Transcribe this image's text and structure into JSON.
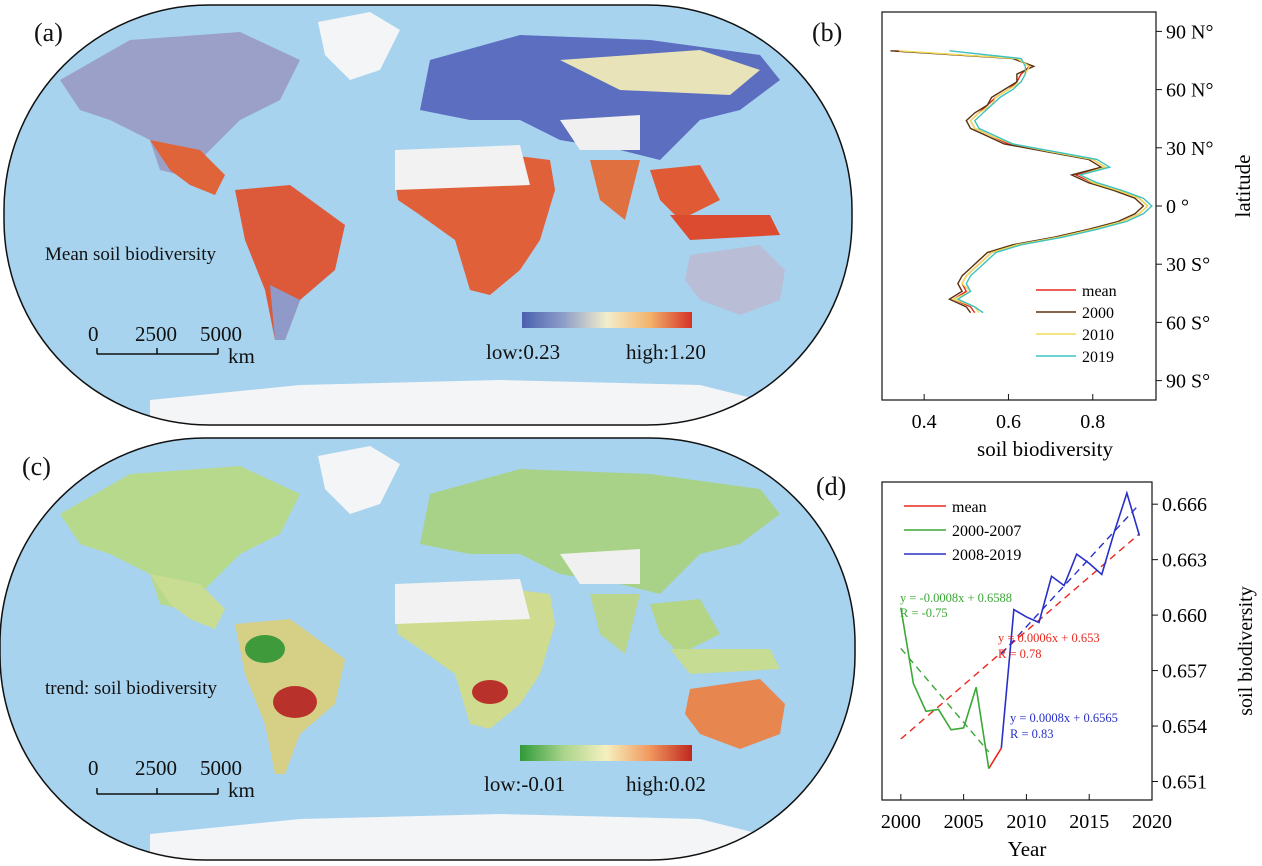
{
  "panels": {
    "a": {
      "label": "(a)",
      "map_title": "Mean soil biodiversity",
      "scale": {
        "ticks": [
          "0",
          "2500",
          "5000"
        ],
        "unit": "km"
      },
      "colorbar": {
        "low_label": "low:0.23",
        "high_label": "high:1.20",
        "colors": [
          "#4a5fb0",
          "#8fa0c8",
          "#f3eecb",
          "#f2b46c",
          "#d73027"
        ]
      }
    },
    "b": {
      "label": "(b)"
    },
    "c": {
      "label": "(c)",
      "map_title": "trend: soil biodiversity",
      "scale": {
        "ticks": [
          "0",
          "2500",
          "5000"
        ],
        "unit": "km"
      },
      "colorbar": {
        "low_label": "low:-0.01",
        "high_label": "high:0.02",
        "colors": [
          "#2f9a3a",
          "#a8d38a",
          "#f6f0bf",
          "#f19a5f",
          "#c0261f"
        ]
      }
    },
    "d": {
      "label": "(d)"
    }
  },
  "map_colors": {
    "ocean": "#a7d3ef",
    "ice": "#f4f5f6"
  },
  "chart_data": [
    {
      "type": "line",
      "panel": "b",
      "xlabel": "soil biodiversity",
      "ylabel": "latitude",
      "xlim": [
        0.3,
        0.95
      ],
      "ylim": [
        -100,
        100
      ],
      "x_ticks": [
        "0.4",
        "0.6",
        "0.8"
      ],
      "x_tick_values": [
        0.4,
        0.6,
        0.8
      ],
      "y_ticks": [
        "90 N°",
        "60 N°",
        "30 N°",
        "0 °",
        "30 S°",
        "60 S°",
        "90 S°"
      ],
      "y_tick_values": [
        90,
        60,
        30,
        0,
        -30,
        -60,
        -90
      ],
      "legend_position": "bottom-right",
      "series": [
        {
          "name": "mean",
          "color": "#e8281e",
          "lat": [
            80,
            76,
            72,
            68,
            64,
            60,
            56,
            52,
            48,
            44,
            40,
            36,
            32,
            28,
            24,
            20,
            16,
            12,
            8,
            4,
            0,
            -4,
            -8,
            -12,
            -16,
            -20,
            -24,
            -28,
            -32,
            -36,
            -40,
            -44,
            -48,
            -52,
            -55
          ],
          "x": [
            0.33,
            0.62,
            0.65,
            0.63,
            0.62,
            0.6,
            0.57,
            0.55,
            0.53,
            0.51,
            0.52,
            0.56,
            0.6,
            0.7,
            0.8,
            0.83,
            0.76,
            0.8,
            0.86,
            0.91,
            0.93,
            0.91,
            0.87,
            0.8,
            0.72,
            0.62,
            0.56,
            0.54,
            0.52,
            0.5,
            0.49,
            0.5,
            0.47,
            0.51,
            0.52
          ]
        },
        {
          "name": "2000",
          "color": "#5a3210",
          "lat": [
            80,
            76,
            72,
            68,
            64,
            60,
            56,
            52,
            48,
            44,
            40,
            36,
            32,
            28,
            24,
            20,
            16,
            12,
            8,
            4,
            0,
            -4,
            -8,
            -12,
            -16,
            -20,
            -24,
            -28,
            -32,
            -36,
            -40,
            -44,
            -48,
            -52,
            -55
          ],
          "x": [
            0.32,
            0.61,
            0.66,
            0.62,
            0.62,
            0.59,
            0.56,
            0.55,
            0.52,
            0.5,
            0.51,
            0.55,
            0.59,
            0.69,
            0.79,
            0.82,
            0.75,
            0.79,
            0.85,
            0.9,
            0.92,
            0.9,
            0.86,
            0.79,
            0.71,
            0.61,
            0.55,
            0.53,
            0.51,
            0.49,
            0.48,
            0.49,
            0.46,
            0.5,
            0.51
          ]
        },
        {
          "name": "2010",
          "color": "#f0dc5a",
          "lat": [
            80,
            76,
            72,
            68,
            64,
            60,
            56,
            52,
            48,
            44,
            40,
            36,
            32,
            28,
            24,
            20,
            16,
            12,
            8,
            4,
            0,
            -4,
            -8,
            -12,
            -16,
            -20,
            -24,
            -28,
            -32,
            -36,
            -40,
            -44,
            -48,
            -52,
            -55
          ],
          "x": [
            0.34,
            0.62,
            0.65,
            0.64,
            0.63,
            0.6,
            0.57,
            0.56,
            0.53,
            0.51,
            0.52,
            0.56,
            0.61,
            0.7,
            0.8,
            0.83,
            0.77,
            0.8,
            0.86,
            0.91,
            0.93,
            0.91,
            0.87,
            0.8,
            0.72,
            0.62,
            0.56,
            0.54,
            0.52,
            0.5,
            0.49,
            0.51,
            0.47,
            0.52,
            0.53
          ]
        },
        {
          "name": "2019",
          "color": "#3cc2c0",
          "lat": [
            80,
            76,
            72,
            68,
            64,
            60,
            56,
            52,
            48,
            44,
            40,
            36,
            32,
            28,
            24,
            20,
            16,
            12,
            8,
            4,
            0,
            -4,
            -8,
            -12,
            -16,
            -20,
            -24,
            -28,
            -32,
            -36,
            -40,
            -44,
            -48,
            -52,
            -55
          ],
          "x": [
            0.46,
            0.63,
            0.64,
            0.64,
            0.63,
            0.61,
            0.58,
            0.56,
            0.54,
            0.52,
            0.53,
            0.57,
            0.61,
            0.71,
            0.81,
            0.84,
            0.77,
            0.81,
            0.87,
            0.92,
            0.94,
            0.92,
            0.88,
            0.81,
            0.73,
            0.63,
            0.57,
            0.55,
            0.53,
            0.51,
            0.5,
            0.51,
            0.48,
            0.52,
            0.54
          ]
        }
      ]
    },
    {
      "type": "line",
      "panel": "d",
      "xlabel": "Year",
      "ylabel": "soil biodiversity",
      "xlim": [
        1998.5,
        2020
      ],
      "ylim": [
        0.65,
        0.6672
      ],
      "x_ticks": [
        "2000",
        "2005",
        "2010",
        "2015",
        "2020"
      ],
      "x_tick_values": [
        2000,
        2005,
        2010,
        2015,
        2020
      ],
      "y_ticks": [
        "0.666",
        "0.663",
        "0.660",
        "0.657",
        "0.654",
        "0.651"
      ],
      "y_tick_values": [
        0.666,
        0.663,
        0.66,
        0.657,
        0.654,
        0.651
      ],
      "legend_position": "top-left",
      "series": [
        {
          "name": "mean",
          "color": "#e8281e",
          "x": [
            2007,
            2008
          ],
          "y": [
            0.6517,
            0.6528
          ]
        },
        {
          "name": "2000-2007",
          "color": "#3aa835",
          "x": [
            2000,
            2001,
            2002,
            2003,
            2004,
            2005,
            2006,
            2007
          ],
          "y": [
            0.6604,
            0.6563,
            0.6548,
            0.6549,
            0.6538,
            0.6539,
            0.6561,
            0.6517
          ]
        },
        {
          "name": "2008-2019",
          "color": "#2830c8",
          "x": [
            2008,
            2009,
            2010,
            2011,
            2012,
            2013,
            2014,
            2015,
            2016,
            2017,
            2018,
            2019
          ],
          "y": [
            0.6528,
            0.6603,
            0.6599,
            0.6596,
            0.6621,
            0.6616,
            0.6633,
            0.6628,
            0.6622,
            0.6645,
            0.6666,
            0.6643
          ]
        }
      ],
      "trendlines": [
        {
          "color": "#e8281e",
          "x": [
            2000,
            2019
          ],
          "y": [
            0.6533,
            0.6644
          ]
        },
        {
          "color": "#3aa835",
          "x": [
            2000,
            2007
          ],
          "y": [
            0.6582,
            0.6526
          ]
        },
        {
          "color": "#2830c8",
          "x": [
            2008,
            2019
          ],
          "y": [
            0.6579,
            0.666
          ]
        }
      ],
      "annotations": [
        {
          "text": "y = -0.0008x + 0.6588",
          "color": "#3aa835"
        },
        {
          "text": "R = -0.75",
          "color": "#3aa835"
        },
        {
          "text": "y = 0.0006x + 0.653",
          "color": "#e8281e"
        },
        {
          "text": "R = 0.78",
          "color": "#e8281e"
        },
        {
          "text": "y = 0.0008x + 0.6565",
          "color": "#2830c8"
        },
        {
          "text": "R = 0.83",
          "color": "#2830c8"
        }
      ]
    }
  ]
}
